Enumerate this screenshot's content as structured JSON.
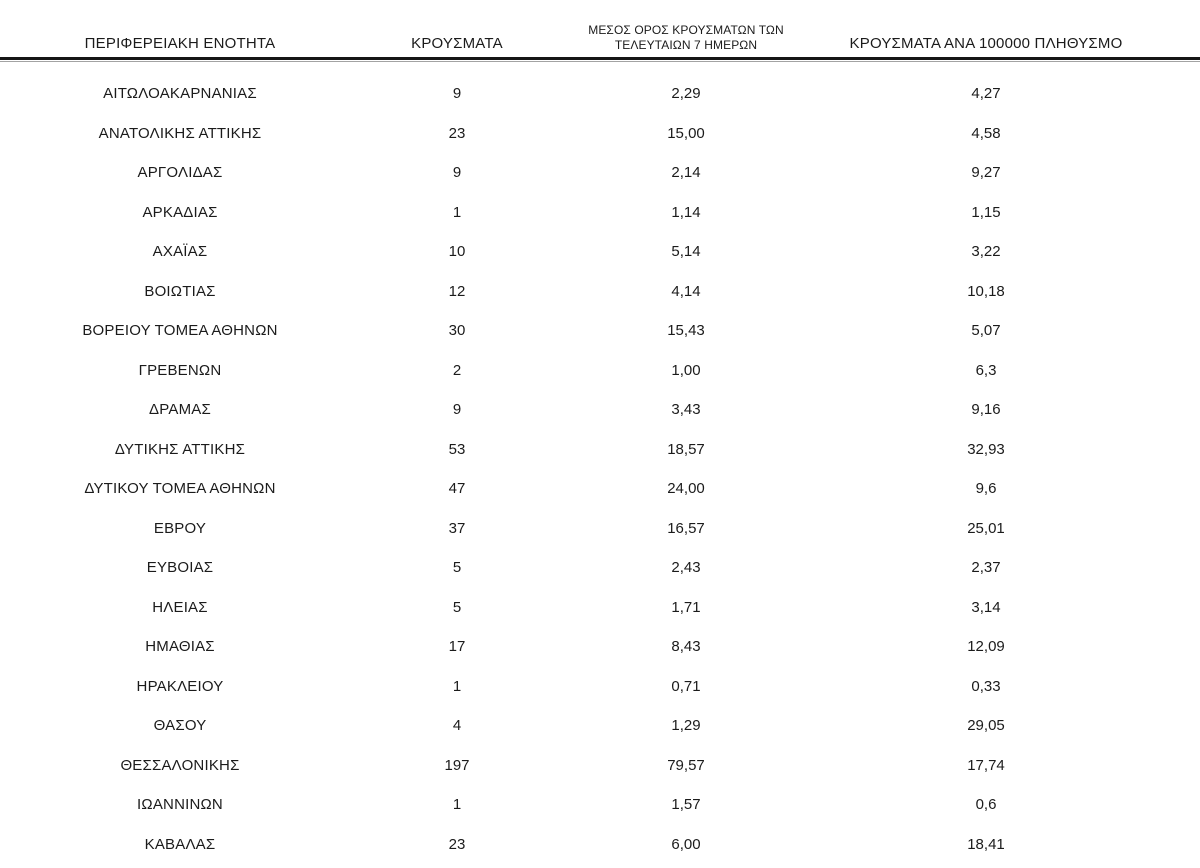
{
  "table": {
    "headers": {
      "region": "ΠΕΡΙΦΕΡΕΙΑΚΗ ΕΝΟΤΗΤΑ",
      "cases": "ΚΡΟΥΣΜΑΤΑ",
      "avg7_line1": "ΜΕΣΟΣ ΟΡΟΣ ΚΡΟΥΣΜΑΤΩΝ ΤΩΝ",
      "avg7_line2": "ΤΕΛΕΥΤΑΙΩΝ 7 ΗΜΕΡΩΝ",
      "per100k": "ΚΡΟΥΣΜΑΤΑ ΑΝΑ 100000 ΠΛΗΘΥΣΜΟ"
    },
    "rows": [
      {
        "region": "ΑΙΤΩΛΟΑΚΑΡΝΑΝΙΑΣ",
        "cases": "9",
        "avg7": "2,29",
        "per100k": "4,27"
      },
      {
        "region": "ΑΝΑΤΟΛΙΚΗΣ ΑΤΤΙΚΗΣ",
        "cases": "23",
        "avg7": "15,00",
        "per100k": "4,58"
      },
      {
        "region": "ΑΡΓΟΛΙΔΑΣ",
        "cases": "9",
        "avg7": "2,14",
        "per100k": "9,27"
      },
      {
        "region": "ΑΡΚΑΔΙΑΣ",
        "cases": "1",
        "avg7": "1,14",
        "per100k": "1,15"
      },
      {
        "region": "ΑΧΑΪΑΣ",
        "cases": "10",
        "avg7": "5,14",
        "per100k": "3,22"
      },
      {
        "region": "ΒΟΙΩΤΙΑΣ",
        "cases": "12",
        "avg7": "4,14",
        "per100k": "10,18"
      },
      {
        "region": "ΒΟΡΕΙΟΥ ΤΟΜΕΑ ΑΘΗΝΩΝ",
        "cases": "30",
        "avg7": "15,43",
        "per100k": "5,07"
      },
      {
        "region": "ΓΡΕΒΕΝΩΝ",
        "cases": "2",
        "avg7": "1,00",
        "per100k": "6,3"
      },
      {
        "region": "ΔΡΑΜΑΣ",
        "cases": "9",
        "avg7": "3,43",
        "per100k": "9,16"
      },
      {
        "region": "ΔΥΤΙΚΗΣ ΑΤΤΙΚΗΣ",
        "cases": "53",
        "avg7": "18,57",
        "per100k": "32,93"
      },
      {
        "region": "ΔΥΤΙΚΟΥ ΤΟΜΕΑ ΑΘΗΝΩΝ",
        "cases": "47",
        "avg7": "24,00",
        "per100k": "9,6"
      },
      {
        "region": "ΕΒΡΟΥ",
        "cases": "37",
        "avg7": "16,57",
        "per100k": "25,01"
      },
      {
        "region": "ΕΥΒΟΙΑΣ",
        "cases": "5",
        "avg7": "2,43",
        "per100k": "2,37"
      },
      {
        "region": "ΗΛΕΙΑΣ",
        "cases": "5",
        "avg7": "1,71",
        "per100k": "3,14"
      },
      {
        "region": "ΗΜΑΘΙΑΣ",
        "cases": "17",
        "avg7": "8,43",
        "per100k": "12,09"
      },
      {
        "region": "ΗΡΑΚΛΕΙΟΥ",
        "cases": "1",
        "avg7": "0,71",
        "per100k": "0,33"
      },
      {
        "region": "ΘΑΣΟΥ",
        "cases": "4",
        "avg7": "1,29",
        "per100k": "29,05"
      },
      {
        "region": "ΘΕΣΣΑΛΟΝΙΚΗΣ",
        "cases": "197",
        "avg7": "79,57",
        "per100k": "17,74"
      },
      {
        "region": "ΙΩΑΝΝΙΝΩΝ",
        "cases": "1",
        "avg7": "1,57",
        "per100k": "0,6"
      },
      {
        "region": "ΚΑΒΑΛΑΣ",
        "cases": "23",
        "avg7": "6,00",
        "per100k": "18,41"
      }
    ]
  },
  "chart_data": {
    "type": "table",
    "title": "",
    "columns": [
      "ΠΕΡΙΦΕΡΕΙΑΚΗ ΕΝΟΤΗΤΑ",
      "ΚΡΟΥΣΜΑΤΑ",
      "ΜΕΣΟΣ ΟΡΟΣ ΚΡΟΥΣΜΑΤΩΝ ΤΩΝ ΤΕΛΕΥΤΑΙΩΝ 7 ΗΜΕΡΩΝ",
      "ΚΡΟΥΣΜΑΤΑ ΑΝΑ 100000 ΠΛΗΘΥΣΜΟ"
    ],
    "rows": [
      [
        "ΑΙΤΩΛΟΑΚΑΡΝΑΝΙΑΣ",
        9,
        2.29,
        4.27
      ],
      [
        "ΑΝΑΤΟΛΙΚΗΣ ΑΤΤΙΚΗΣ",
        23,
        15.0,
        4.58
      ],
      [
        "ΑΡΓΟΛΙΔΑΣ",
        9,
        2.14,
        9.27
      ],
      [
        "ΑΡΚΑΔΙΑΣ",
        1,
        1.14,
        1.15
      ],
      [
        "ΑΧΑΪΑΣ",
        10,
        5.14,
        3.22
      ],
      [
        "ΒΟΙΩΤΙΑΣ",
        12,
        4.14,
        10.18
      ],
      [
        "ΒΟΡΕΙΟΥ ΤΟΜΕΑ ΑΘΗΝΩΝ",
        30,
        15.43,
        5.07
      ],
      [
        "ΓΡΕΒΕΝΩΝ",
        2,
        1.0,
        6.3
      ],
      [
        "ΔΡΑΜΑΣ",
        9,
        3.43,
        9.16
      ],
      [
        "ΔΥΤΙΚΗΣ ΑΤΤΙΚΗΣ",
        53,
        18.57,
        32.93
      ],
      [
        "ΔΥΤΙΚΟΥ ΤΟΜΕΑ ΑΘΗΝΩΝ",
        47,
        24.0,
        9.6
      ],
      [
        "ΕΒΡΟΥ",
        37,
        16.57,
        25.01
      ],
      [
        "ΕΥΒΟΙΑΣ",
        5,
        2.43,
        2.37
      ],
      [
        "ΗΛΕΙΑΣ",
        5,
        1.71,
        3.14
      ],
      [
        "ΗΜΑΘΙΑΣ",
        17,
        8.43,
        12.09
      ],
      [
        "ΗΡΑΚΛΕΙΟΥ",
        1,
        0.71,
        0.33
      ],
      [
        "ΘΑΣΟΥ",
        4,
        1.29,
        29.05
      ],
      [
        "ΘΕΣΣΑΛΟΝΙΚΗΣ",
        197,
        79.57,
        17.74
      ],
      [
        "ΙΩΑΝΝΙΝΩΝ",
        1,
        1.57,
        0.6
      ],
      [
        "ΚΑΒΑΛΑΣ",
        23,
        6.0,
        18.41
      ]
    ]
  }
}
